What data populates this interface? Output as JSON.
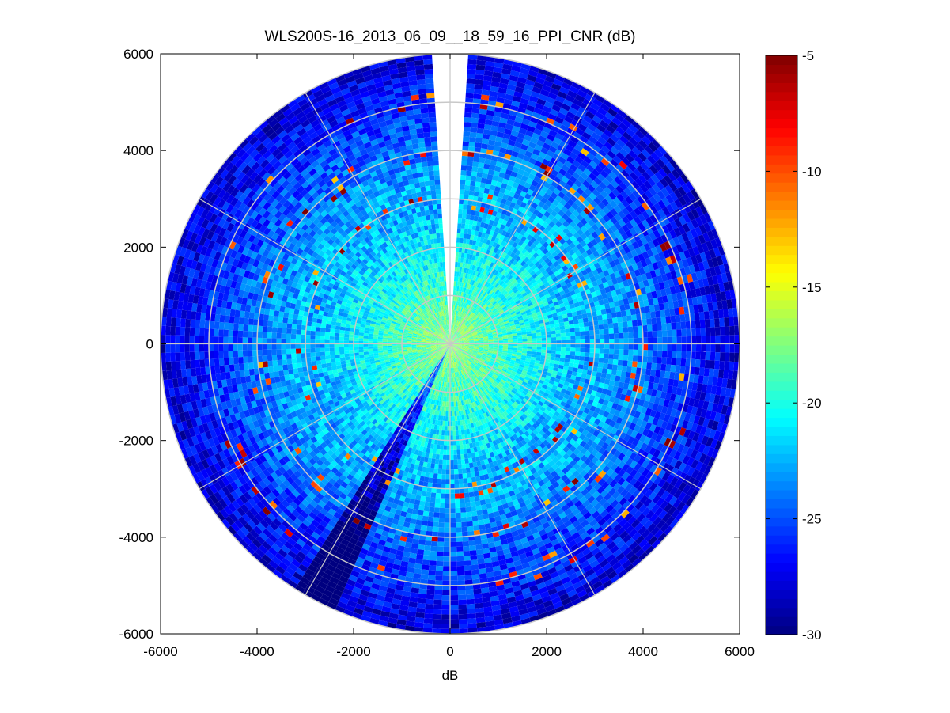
{
  "chart_data": {
    "type": "heatmap",
    "subtype": "polar PPI scan",
    "title": "WLS200S-16_2013_06_09__18_59_16_PPI_CNR (dB)",
    "xlabel": "dB",
    "ylabel": "",
    "xlim": [
      -6000,
      6000
    ],
    "ylim": [
      -6000,
      6000
    ],
    "x_ticks": [
      -6000,
      -4000,
      -2000,
      0,
      2000,
      4000,
      6000
    ],
    "y_ticks": [
      6000,
      4000,
      2000,
      0,
      -2000,
      -4000,
      -6000
    ],
    "x_tick_labels": [
      "-6000",
      "-4000",
      "-2000",
      "0",
      "2000",
      "4000",
      "6000"
    ],
    "y_tick_labels": [
      "6000",
      "4000",
      "2000",
      "0",
      "-2000",
      "-4000",
      "-6000"
    ],
    "max_range": 6000,
    "range_rings": [
      1000,
      2000,
      3000,
      4000,
      5000,
      6000
    ],
    "radial_spokes_deg": [
      0,
      30,
      60,
      90,
      120,
      150,
      180,
      210,
      240,
      270,
      300,
      330
    ],
    "grid": true,
    "blind_sector_deg": [
      -4,
      4
    ],
    "colorbar": {
      "min": -30,
      "max": -5,
      "ticks": [
        -5,
        -10,
        -15,
        -20,
        -25,
        -30
      ],
      "tick_labels": [
        "-5",
        "-10",
        "-15",
        "-20",
        "-25",
        "-30"
      ],
      "colormap": "jet",
      "position": "right"
    },
    "field_description": {
      "near_field_range_max": 3000,
      "near_field_cnr_range": [
        -21,
        -17
      ],
      "far_field_cnr_range": [
        -30,
        -25
      ],
      "hot_spot_ring_ranges": [
        3000,
        4000,
        5000
      ],
      "hot_spot_cnr_range": [
        -9,
        -5
      ]
    }
  }
}
